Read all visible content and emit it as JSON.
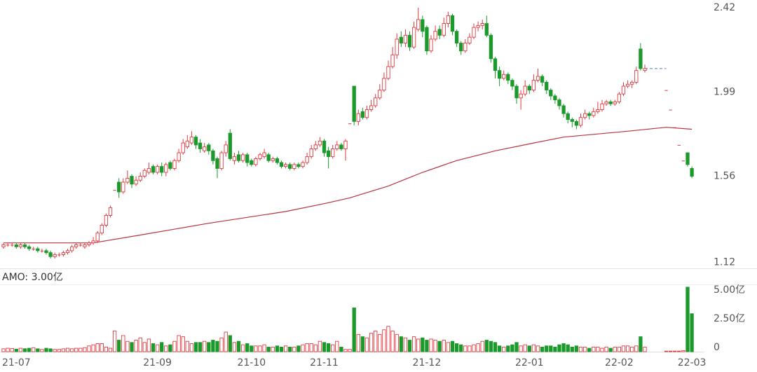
{
  "chart_data": [
    {
      "type": "candlestick",
      "up_color": "#e0393e",
      "down_color": "#1b9a2b",
      "ylim": [
        1.09,
        2.46
      ],
      "yticks": [
        1.12,
        1.56,
        1.99,
        2.42
      ],
      "open": [
        1.2,
        1.21,
        1.21,
        1.21,
        1.2,
        1.21,
        1.2,
        1.19,
        1.19,
        1.18,
        1.18,
        1.17,
        1.15,
        1.16,
        1.16,
        1.17,
        1.18,
        1.2,
        1.21,
        1.2,
        1.21,
        1.22,
        1.23,
        1.27,
        1.31,
        1.36,
        1.49,
        1.53,
        1.48,
        1.53,
        1.56,
        1.52,
        1.54,
        1.56,
        1.58,
        1.61,
        1.58,
        1.61,
        1.58,
        1.63,
        1.6,
        1.64,
        1.68,
        1.71,
        1.73,
        1.76,
        1.73,
        1.69,
        1.72,
        1.69,
        1.65,
        1.6,
        1.68,
        1.78,
        1.64,
        1.67,
        1.64,
        1.67,
        1.64,
        1.62,
        1.65,
        1.66,
        1.67,
        1.64,
        1.65,
        1.63,
        1.61,
        1.62,
        1.6,
        1.62,
        1.61,
        1.63,
        1.66,
        1.7,
        1.72,
        1.74,
        1.69,
        1.66,
        1.7,
        1.72,
        1.7,
        1.83,
        2.02,
        1.84,
        1.89,
        1.86,
        1.9,
        1.92,
        1.96,
        2.0,
        2.06,
        2.12,
        2.18,
        2.27,
        2.24,
        2.28,
        2.22,
        2.31,
        2.36,
        2.32,
        2.2,
        2.26,
        2.31,
        2.28,
        2.34,
        2.38,
        2.3,
        2.24,
        2.2,
        2.24,
        2.27,
        2.32,
        2.33,
        2.34,
        2.28,
        2.16,
        2.1,
        2.06,
        2.08,
        2.05,
        2.02,
        1.96,
        1.98,
        2.02,
        2.0,
        2.05,
        2.07,
        2.04,
        2.0,
        1.97,
        1.95,
        1.92,
        1.88,
        1.85,
        1.84,
        1.82,
        1.86,
        1.88,
        1.87,
        1.89,
        1.9,
        1.93,
        1.94,
        1.93,
        1.94,
        1.98,
        2.02,
        2.03,
        2.04,
        2.21,
        2.1,
        null,
        null,
        null,
        null,
        2.0,
        1.9,
        1.81,
        1.72,
        1.64,
        1.68,
        1.6
      ],
      "high": [
        1.22,
        1.22,
        1.22,
        1.22,
        1.22,
        1.22,
        1.21,
        1.2,
        1.2,
        1.19,
        1.19,
        1.18,
        1.17,
        1.17,
        1.18,
        1.19,
        1.21,
        1.22,
        1.22,
        1.22,
        1.23,
        1.25,
        1.28,
        1.32,
        1.37,
        1.41,
        1.49,
        1.55,
        1.55,
        1.59,
        1.57,
        1.56,
        1.58,
        1.6,
        1.63,
        1.62,
        1.62,
        1.63,
        1.63,
        1.64,
        1.65,
        1.7,
        1.75,
        1.77,
        1.79,
        1.77,
        1.75,
        1.73,
        1.73,
        1.7,
        1.66,
        1.69,
        1.74,
        1.8,
        1.68,
        1.69,
        1.68,
        1.68,
        1.65,
        1.66,
        1.68,
        1.7,
        1.68,
        1.66,
        1.66,
        1.64,
        1.63,
        1.63,
        1.63,
        1.63,
        1.64,
        1.68,
        1.72,
        1.74,
        1.76,
        1.75,
        1.71,
        1.72,
        1.74,
        1.73,
        1.75,
        1.83,
        2.02,
        1.9,
        1.91,
        1.92,
        1.95,
        1.98,
        2.03,
        2.09,
        2.15,
        2.22,
        2.29,
        2.3,
        2.31,
        2.3,
        2.35,
        2.42,
        2.38,
        2.33,
        2.28,
        2.33,
        2.33,
        2.37,
        2.4,
        2.39,
        2.31,
        2.25,
        2.26,
        2.29,
        2.34,
        2.35,
        2.36,
        2.38,
        2.29,
        2.17,
        2.12,
        2.1,
        2.09,
        2.06,
        2.03,
        2.0,
        2.05,
        2.03,
        2.08,
        2.11,
        2.08,
        2.05,
        2.01,
        1.98,
        1.96,
        1.93,
        1.89,
        1.86,
        1.85,
        1.88,
        1.9,
        1.89,
        1.91,
        1.94,
        1.95,
        1.95,
        1.95,
        1.95,
        1.99,
        2.04,
        2.05,
        2.05,
        2.12,
        2.24,
        2.13,
        null,
        null,
        null,
        null,
        2.0,
        1.9,
        1.81,
        1.72,
        1.64,
        1.68,
        1.61
      ],
      "low": [
        1.19,
        1.2,
        1.2,
        1.19,
        1.19,
        1.19,
        1.18,
        1.18,
        1.17,
        1.17,
        1.16,
        1.14,
        1.14,
        1.15,
        1.15,
        1.16,
        1.17,
        1.19,
        1.2,
        1.19,
        1.2,
        1.21,
        1.22,
        1.26,
        1.3,
        1.35,
        1.49,
        1.45,
        1.47,
        1.52,
        1.5,
        1.51,
        1.53,
        1.55,
        1.57,
        1.57,
        1.57,
        1.56,
        1.56,
        1.59,
        1.59,
        1.63,
        1.67,
        1.7,
        1.72,
        1.7,
        1.68,
        1.68,
        1.67,
        1.62,
        1.55,
        1.59,
        1.66,
        1.64,
        1.62,
        1.63,
        1.63,
        1.61,
        1.61,
        1.61,
        1.64,
        1.65,
        1.63,
        1.63,
        1.62,
        1.6,
        1.6,
        1.59,
        1.59,
        1.6,
        1.6,
        1.62,
        1.65,
        1.69,
        1.71,
        1.66,
        1.6,
        1.65,
        1.69,
        1.69,
        1.64,
        1.83,
        1.82,
        1.82,
        1.85,
        1.85,
        1.89,
        1.91,
        1.95,
        1.99,
        2.05,
        2.11,
        2.16,
        2.22,
        2.22,
        2.2,
        2.21,
        2.3,
        2.27,
        2.18,
        2.19,
        2.25,
        2.26,
        2.27,
        2.32,
        2.28,
        2.22,
        2.18,
        2.19,
        2.23,
        2.26,
        2.3,
        2.31,
        2.27,
        2.14,
        2.06,
        2.02,
        2.05,
        2.03,
        2.0,
        1.93,
        1.9,
        1.97,
        1.98,
        1.99,
        2.04,
        2.02,
        1.98,
        1.95,
        1.93,
        1.9,
        1.86,
        1.83,
        1.81,
        1.8,
        1.81,
        1.85,
        1.85,
        1.86,
        1.88,
        1.89,
        1.92,
        1.92,
        1.92,
        1.93,
        1.97,
        2.01,
        2.01,
        2.03,
        2.1,
        2.09,
        null,
        null,
        null,
        null,
        2.0,
        1.9,
        1.81,
        1.72,
        1.64,
        1.61,
        1.55
      ],
      "close": [
        1.21,
        1.21,
        1.21,
        1.2,
        1.21,
        1.2,
        1.19,
        1.19,
        1.18,
        1.18,
        1.17,
        1.15,
        1.16,
        1.16,
        1.17,
        1.18,
        1.2,
        1.21,
        1.21,
        1.21,
        1.22,
        1.23,
        1.27,
        1.31,
        1.36,
        1.4,
        1.49,
        1.48,
        1.53,
        1.55,
        1.52,
        1.54,
        1.56,
        1.59,
        1.6,
        1.58,
        1.61,
        1.58,
        1.62,
        1.6,
        1.64,
        1.68,
        1.73,
        1.74,
        1.76,
        1.72,
        1.7,
        1.71,
        1.69,
        1.64,
        1.6,
        1.68,
        1.72,
        1.65,
        1.66,
        1.64,
        1.67,
        1.63,
        1.62,
        1.65,
        1.67,
        1.68,
        1.64,
        1.65,
        1.63,
        1.61,
        1.62,
        1.6,
        1.62,
        1.61,
        1.63,
        1.66,
        1.7,
        1.72,
        1.74,
        1.68,
        1.66,
        1.7,
        1.72,
        1.7,
        1.74,
        1.83,
        1.84,
        1.88,
        1.86,
        1.9,
        1.92,
        1.96,
        2.0,
        2.06,
        2.12,
        2.18,
        2.26,
        2.24,
        2.28,
        2.22,
        2.32,
        2.36,
        2.3,
        2.2,
        2.26,
        2.3,
        2.28,
        2.34,
        2.38,
        2.3,
        2.24,
        2.2,
        2.24,
        2.27,
        2.32,
        2.33,
        2.34,
        2.28,
        2.16,
        2.1,
        2.06,
        2.08,
        2.05,
        2.02,
        1.96,
        1.98,
        2.02,
        2.0,
        2.05,
        2.07,
        2.04,
        2.0,
        1.97,
        1.95,
        1.92,
        1.88,
        1.85,
        1.84,
        1.82,
        1.86,
        1.88,
        1.87,
        1.89,
        1.9,
        1.93,
        1.94,
        1.93,
        1.94,
        1.98,
        2.02,
        2.03,
        2.04,
        2.1,
        2.11,
        2.11,
        null,
        null,
        null,
        null,
        2.0,
        1.9,
        1.81,
        1.72,
        1.64,
        1.62,
        1.56
      ],
      "moving_average": {
        "color": "#b8333b",
        "x": [
          0,
          21,
          32,
          48,
          66,
          75,
          81,
          90,
          98,
          106,
          115,
          124,
          131,
          146,
          155,
          161
        ],
        "values": [
          1.22,
          1.22,
          1.26,
          1.32,
          1.38,
          1.42,
          1.45,
          1.51,
          1.58,
          1.64,
          1.69,
          1.73,
          1.76,
          1.79,
          1.81,
          1.8
        ]
      },
      "suspension_color": "#4a7fc1"
    },
    {
      "type": "bar",
      "title": "AMO: 3.00亿",
      "ylim": [
        0,
        5.9
      ],
      "yticks": [
        0,
        {
          "value": 2.5,
          "label": "2.50亿"
        },
        {
          "value": 5,
          "label": "5.00亿"
        }
      ],
      "categories": [
        null,
        null,
        null,
        "21-07",
        null,
        null,
        null,
        null,
        null,
        null,
        null,
        null,
        null,
        null,
        null,
        null,
        null,
        null,
        null,
        null,
        null,
        null,
        null,
        null,
        null,
        null,
        null,
        null,
        null,
        null,
        null,
        null,
        null,
        null,
        null,
        null,
        "21-09",
        null,
        null,
        null,
        null,
        null,
        null,
        null,
        null,
        null,
        null,
        null,
        null,
        null,
        null,
        null,
        null,
        null,
        null,
        null,
        null,
        null,
        "21-10",
        null,
        null,
        null,
        null,
        null,
        null,
        null,
        null,
        null,
        null,
        null,
        null,
        null,
        null,
        null,
        null,
        "21-11",
        null,
        null,
        null,
        null,
        null,
        null,
        null,
        null,
        null,
        null,
        null,
        null,
        null,
        null,
        null,
        null,
        null,
        null,
        null,
        null,
        null,
        null,
        null,
        "21-12",
        null,
        null,
        null,
        null,
        null,
        null,
        null,
        null,
        null,
        null,
        null,
        null,
        null,
        null,
        null,
        null,
        null,
        null,
        null,
        null,
        null,
        null,
        null,
        "22-01",
        null,
        null,
        null,
        null,
        null,
        null,
        null,
        null,
        null,
        null,
        null,
        null,
        null,
        null,
        null,
        null,
        null,
        null,
        null,
        null,
        "22-02",
        null,
        null,
        null,
        null,
        null,
        null,
        null,
        null,
        null,
        null,
        null,
        null,
        null,
        null,
        null,
        null,
        "22-03"
      ],
      "values": [
        0.25,
        0.3,
        0.28,
        0.22,
        0.3,
        0.26,
        0.3,
        0.35,
        0.25,
        0.2,
        0.3,
        0.25,
        0.2,
        0.2,
        0.25,
        0.3,
        0.25,
        0.3,
        0.3,
        0.35,
        0.5,
        0.6,
        0.7,
        0.7,
        0.4,
        0.3,
        1.8,
        1.0,
        1.4,
        0.9,
        0.8,
        1.0,
        1.2,
        0.8,
        1.1,
        0.7,
        0.6,
        0.8,
        0.5,
        0.6,
        0.9,
        1.4,
        1.3,
        0.9,
        0.7,
        0.8,
        0.8,
        0.9,
        0.8,
        1.0,
        0.9,
        1.2,
        1.7,
        1.4,
        0.8,
        0.9,
        0.6,
        0.7,
        0.5,
        0.5,
        0.5,
        0.6,
        0.4,
        0.4,
        0.5,
        0.4,
        0.5,
        0.4,
        0.4,
        0.5,
        0.6,
        0.7,
        0.7,
        0.6,
        0.9,
        0.8,
        0.7,
        0.6,
        0.9,
        0.4,
        0.2,
        0.2,
        3.8,
        1.5,
        1.3,
        1.2,
        1.6,
        1.8,
        1.5,
        1.9,
        2.2,
        1.8,
        1.5,
        1.3,
        1.2,
        1.0,
        1.3,
        1.1,
        1.2,
        1.0,
        1.1,
        1.0,
        0.9,
        1.0,
        0.8,
        0.9,
        0.7,
        0.6,
        0.5,
        0.5,
        0.6,
        0.7,
        0.9,
        1.0,
        0.9,
        0.8,
        0.5,
        0.4,
        0.5,
        0.6,
        0.8,
        0.5,
        0.6,
        0.5,
        0.6,
        0.5,
        0.4,
        0.5,
        0.5,
        0.4,
        0.6,
        0.7,
        0.6,
        0.4,
        0.5,
        0.4,
        0.4,
        0.3,
        0.4,
        0.4,
        0.3,
        0.4,
        0.3,
        0.4,
        0.4,
        0.5,
        0.5,
        0.4,
        0.5,
        1.3,
        0.4,
        null,
        null,
        null,
        null,
        0.05,
        0.05,
        0.05,
        0.05,
        0.1,
        5.6,
        3.3
      ]
    }
  ]
}
